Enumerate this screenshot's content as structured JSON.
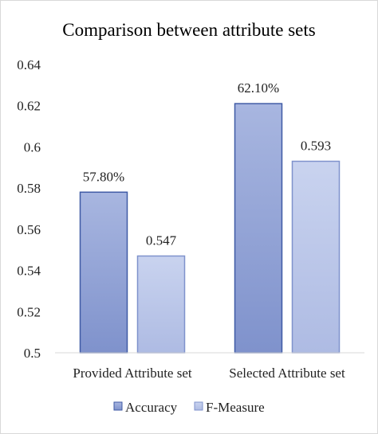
{
  "chart_data": {
    "type": "bar",
    "title": "Comparison between attribute sets",
    "categories": [
      "Provided Attribute set",
      "Selected Attribute set"
    ],
    "series": [
      {
        "name": "Accuracy",
        "values": [
          0.578,
          0.621
        ],
        "labels": [
          "57.80%",
          "62.10%"
        ],
        "color": "#8fa0d3",
        "color_top": "#a8b6e0",
        "color_bottom": "#7f92cc",
        "border": "#3f5aa5"
      },
      {
        "name": "F-Measure",
        "values": [
          0.547,
          0.593
        ],
        "labels": [
          "0.547",
          "0.593"
        ],
        "color": "#bac6e8",
        "color_top": "#c9d3ef",
        "color_bottom": "#aebbe3",
        "border": "#7f92cc"
      }
    ],
    "ylim": [
      0.5,
      0.64
    ],
    "yticks": [
      "0.64",
      "0.62",
      "0.6",
      "0.58",
      "0.56",
      "0.54",
      "0.52",
      "0.5"
    ],
    "ytick_values": [
      0.64,
      0.62,
      0.6,
      0.58,
      0.56,
      0.54,
      0.52,
      0.5
    ],
    "grid": false,
    "legend_position": "bottom",
    "xlabel": "",
    "ylabel": ""
  }
}
